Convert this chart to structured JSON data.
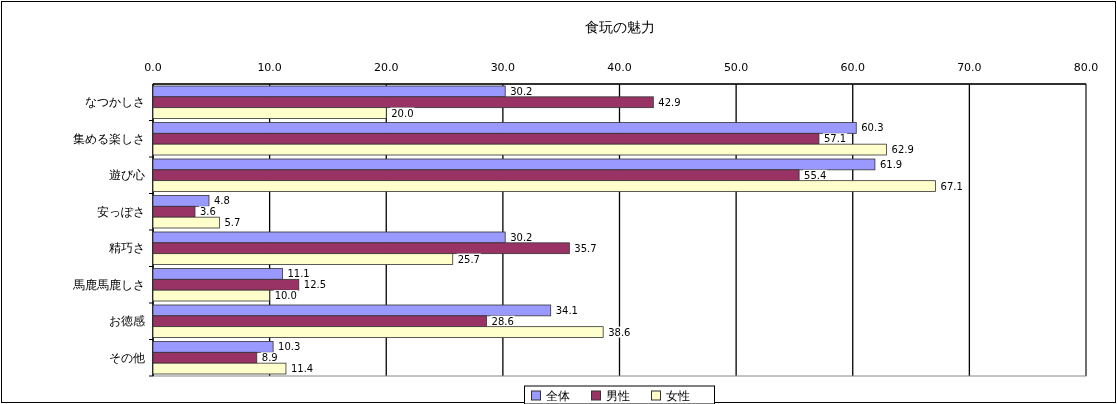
{
  "chart_data": {
    "type": "bar",
    "orientation": "horizontal",
    "title": "食玩の魅力",
    "categories": [
      "なつかしさ",
      "集める楽しさ",
      "遊び心",
      "安っぽさ",
      "精巧さ",
      "馬鹿馬鹿しさ",
      "お徳感",
      "その他"
    ],
    "series": [
      {
        "name": "全体",
        "color": "#9999ff",
        "values": [
          30.2,
          60.3,
          61.9,
          4.8,
          30.2,
          11.1,
          34.1,
          10.3
        ],
        "value_labels": [
          "30.2",
          "60.3",
          "61.9",
          "4.8",
          "30.2",
          "11.1",
          "34.1",
          "10.3"
        ]
      },
      {
        "name": "男性",
        "color": "#993366",
        "values": [
          42.9,
          57.1,
          55.4,
          3.6,
          35.7,
          12.5,
          28.6,
          8.9
        ],
        "value_labels": [
          "42.9",
          "57.1",
          "55.4",
          "3.6",
          "35.7",
          "12.5",
          "28.6",
          "8.9"
        ]
      },
      {
        "name": "女性",
        "color": "#ffffcc",
        "values": [
          20.0,
          62.9,
          67.1,
          5.7,
          25.7,
          10.0,
          38.6,
          11.4
        ],
        "value_labels": [
          "20.0",
          "62.9",
          "67.1",
          "5.7",
          "25.7",
          "10.0",
          "38.6",
          "11.4"
        ]
      }
    ],
    "xlim": [
      0,
      80
    ],
    "xticks": [
      {
        "value": 0,
        "label": "0.0"
      },
      {
        "value": 10,
        "label": "10.0"
      },
      {
        "value": 20,
        "label": "20.0"
      },
      {
        "value": 30,
        "label": "30.0"
      },
      {
        "value": 40,
        "label": "40.0"
      },
      {
        "value": 50,
        "label": "50.0"
      },
      {
        "value": 60,
        "label": "60.0"
      },
      {
        "value": 70,
        "label": "70.0"
      },
      {
        "value": 80,
        "label": "80.0"
      }
    ],
    "grid": "x",
    "legend": "bottom"
  }
}
